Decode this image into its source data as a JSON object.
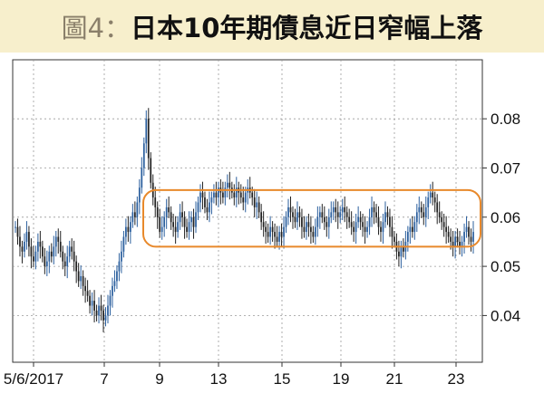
{
  "title": {
    "prefix": "圖4：",
    "text": "日本10年期債息近日窄幅上落"
  },
  "colors": {
    "background": "#f7efcc",
    "plot_bg": "#ffffff",
    "up_candle": "#2b5f9e",
    "down_candle": "#222222",
    "highlight": "#e8892b",
    "grid": "#999999"
  },
  "chart_data": {
    "type": "candlestick",
    "title": "日本10年期債息近日窄幅上落",
    "xlabel": "",
    "ylabel": "",
    "x_tick_labels": [
      "5/6/2017",
      "7",
      "9",
      "13",
      "15",
      "19",
      "21",
      "23"
    ],
    "y_tick_labels": [
      "0.04",
      "0.05",
      "0.06",
      "0.07",
      "0.08"
    ],
    "y_ticks": [
      0.04,
      0.05,
      0.06,
      0.07,
      0.08
    ],
    "ylim": [
      0.0305,
      0.092
    ],
    "grid": true,
    "highlight_box": {
      "y_range": [
        0.054,
        0.0655
      ]
    },
    "close_series": [
      0.058,
      0.056,
      0.054,
      0.053,
      0.055,
      0.057,
      0.054,
      0.052,
      0.051,
      0.053,
      0.055,
      0.054,
      0.052,
      0.05,
      0.051,
      0.053,
      0.052,
      0.054,
      0.056,
      0.055,
      0.053,
      0.051,
      0.05,
      0.052,
      0.054,
      0.053,
      0.051,
      0.049,
      0.047,
      0.048,
      0.046,
      0.045,
      0.044,
      0.042,
      0.043,
      0.041,
      0.04,
      0.042,
      0.041,
      0.039,
      0.04,
      0.042,
      0.044,
      0.046,
      0.047,
      0.049,
      0.051,
      0.053,
      0.056,
      0.058,
      0.057,
      0.059,
      0.061,
      0.06,
      0.063,
      0.066,
      0.07,
      0.075,
      0.08,
      0.072,
      0.067,
      0.064,
      0.062,
      0.06,
      0.057,
      0.058,
      0.06,
      0.062,
      0.061,
      0.059,
      0.058,
      0.057,
      0.059,
      0.061,
      0.06,
      0.058,
      0.057,
      0.059,
      0.06,
      0.058,
      0.061,
      0.063,
      0.065,
      0.064,
      0.062,
      0.061,
      0.063,
      0.064,
      0.065,
      0.064,
      0.066,
      0.065,
      0.064,
      0.066,
      0.067,
      0.066,
      0.065,
      0.064,
      0.066,
      0.065,
      0.064,
      0.063,
      0.065,
      0.066,
      0.065,
      0.064,
      0.062,
      0.063,
      0.061,
      0.059,
      0.058,
      0.057,
      0.056,
      0.058,
      0.057,
      0.056,
      0.055,
      0.057,
      0.056,
      0.058,
      0.06,
      0.062,
      0.061,
      0.06,
      0.059,
      0.061,
      0.06,
      0.058,
      0.057,
      0.059,
      0.058,
      0.057,
      0.056,
      0.058,
      0.06,
      0.061,
      0.06,
      0.059,
      0.058,
      0.06,
      0.061,
      0.062,
      0.061,
      0.06,
      0.061,
      0.062,
      0.061,
      0.06,
      0.059,
      0.058,
      0.057,
      0.059,
      0.06,
      0.059,
      0.058,
      0.057,
      0.058,
      0.06,
      0.062,
      0.061,
      0.06,
      0.058,
      0.057,
      0.059,
      0.061,
      0.06,
      0.058,
      0.056,
      0.055,
      0.053,
      0.052,
      0.054,
      0.053,
      0.055,
      0.057,
      0.058,
      0.057,
      0.059,
      0.061,
      0.062,
      0.061,
      0.06,
      0.062,
      0.064,
      0.065,
      0.064,
      0.063,
      0.061,
      0.06,
      0.059,
      0.058,
      0.057,
      0.056,
      0.055,
      0.054,
      0.056,
      0.055,
      0.054,
      0.055,
      0.057,
      0.058,
      0.056,
      0.055,
      0.057
    ]
  }
}
